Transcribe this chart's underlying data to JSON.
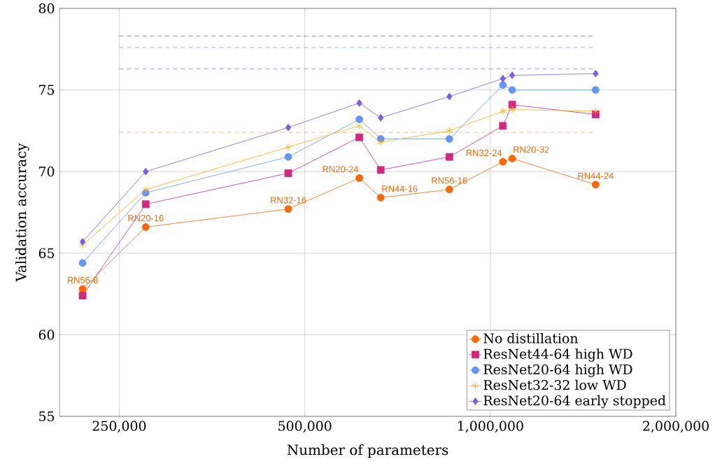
{
  "chart_data": {
    "type": "line",
    "xlabel": "Number of parameters",
    "ylabel": "Validation accuracy",
    "x": [
      218000,
      276000,
      470000,
      613000,
      664000,
      858000,
      1048000,
      1085000,
      1482000
    ],
    "series": [
      {
        "name": "No distillation",
        "color": "#ff6600",
        "marker": "circle",
        "values": [
          62.8,
          66.6,
          67.7,
          69.6,
          68.4,
          68.9,
          70.6,
          70.8,
          69.2
        ]
      },
      {
        "name": "ResNet44-64 high WD",
        "color": "#d62780",
        "marker": "square",
        "values": [
          62.4,
          68.0,
          69.9,
          72.1,
          70.1,
          70.9,
          72.8,
          74.1,
          73.5
        ]
      },
      {
        "name": "ResNet20-64 high WD",
        "color": "#6495ff",
        "marker": "circle",
        "values": [
          64.4,
          68.7,
          70.9,
          73.2,
          72.0,
          72.0,
          75.3,
          75.0,
          75.0
        ]
      },
      {
        "name": "ResNet32-32 low WD",
        "color": "#ffb000",
        "marker": "cross",
        "values": [
          65.5,
          68.9,
          71.5,
          72.8,
          71.8,
          72.5,
          73.7,
          73.8,
          73.7
        ]
      },
      {
        "name": "ResNet20-64 early stopped",
        "color": "#7b5bea",
        "marker": "diamond",
        "values": [
          65.7,
          70.0,
          72.7,
          74.2,
          73.3,
          74.6,
          75.7,
          75.9,
          76.0
        ]
      }
    ],
    "ref_lines": [
      {
        "axis": "y",
        "value": 78.3,
        "color": "#a0405a",
        "line_style": "dashed"
      },
      {
        "axis": "y",
        "value": 77.6,
        "color": "#6495ff",
        "line_style": "dashed"
      },
      {
        "axis": "y",
        "value": 76.3,
        "color": "#7b5bea",
        "line_style": "dashed"
      },
      {
        "axis": "y",
        "value": 72.4,
        "color": "#ffb000",
        "line_style": "dashed"
      }
    ],
    "annotations": [
      {
        "text": "RN56-8",
        "x": 218000,
        "y": 62.8
      },
      {
        "text": "RN20-16",
        "x": 276000,
        "y": 66.6
      },
      {
        "text": "RN32-16",
        "x": 470000,
        "y": 67.7
      },
      {
        "text": "RN20-24",
        "x": 613000,
        "y": 69.6
      },
      {
        "text": "RN44-16",
        "x": 664000,
        "y": 68.4
      },
      {
        "text": "RN56-16",
        "x": 858000,
        "y": 68.9
      },
      {
        "text": "RN32-24",
        "x": 1048000,
        "y": 70.6
      },
      {
        "text": "RN20-32",
        "x": 1085000,
        "y": 70.8
      },
      {
        "text": "RN44-24",
        "x": 1482000,
        "y": 69.2
      }
    ],
    "log": "x",
    "xlim": [
      200000,
      2000000
    ],
    "xticks": [
      {
        "value": 250000,
        "label": "250,000"
      },
      {
        "value": 500000,
        "label": "500,000"
      },
      {
        "value": 1000000,
        "label": "1,000,000"
      },
      {
        "value": 2000000,
        "label": "2,000,000"
      }
    ],
    "ylim": [
      55,
      80
    ],
    "yticks": [
      55,
      60,
      65,
      70,
      75,
      80
    ],
    "grid": true,
    "legend": "bottom right"
  }
}
